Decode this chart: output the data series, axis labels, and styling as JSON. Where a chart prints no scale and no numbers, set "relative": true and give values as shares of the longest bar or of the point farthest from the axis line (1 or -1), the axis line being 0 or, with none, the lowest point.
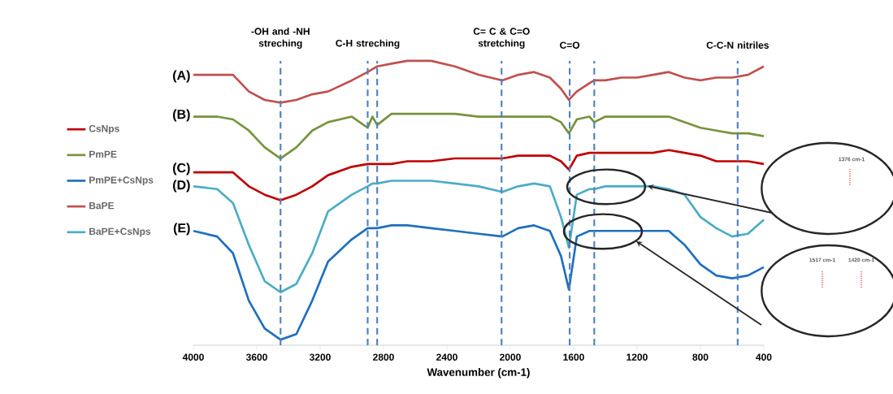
{
  "chart_data": {
    "type": "line",
    "xlabel": "Wavenumber (cm-1)",
    "relative": true,
    "legend": "left",
    "line_style": "solid",
    "xlim": [
      4000,
      400
    ],
    "xticks": [
      4000,
      3600,
      3200,
      2800,
      2400,
      2000,
      1600,
      1200,
      800,
      400
    ],
    "x": [
      4000,
      3850,
      3750,
      3650,
      3550,
      3450,
      3350,
      3250,
      3150,
      3000,
      2900,
      2870,
      2840,
      2750,
      2650,
      2500,
      2350,
      2200,
      2050,
      1950,
      1850,
      1750,
      1680,
      1630,
      1580,
      1500,
      1470,
      1400,
      1300,
      1200,
      1100,
      1000,
      900,
      800,
      700,
      600,
      500,
      400
    ],
    "series": [
      {
        "name": "CsNps",
        "color": "#c00000",
        "values": [
          0.6,
          0.6,
          0.6,
          0.55,
          0.52,
          0.5,
          0.52,
          0.55,
          0.59,
          0.62,
          0.63,
          0.63,
          0.63,
          0.63,
          0.64,
          0.64,
          0.65,
          0.65,
          0.65,
          0.66,
          0.66,
          0.66,
          0.64,
          0.61,
          0.66,
          0.67,
          0.67,
          0.67,
          0.67,
          0.67,
          0.67,
          0.68,
          0.67,
          0.66,
          0.64,
          0.64,
          0.64,
          0.63
        ]
      },
      {
        "name": "PmPE",
        "color": "#77933c",
        "values": [
          0.8,
          0.8,
          0.79,
          0.75,
          0.69,
          0.65,
          0.69,
          0.75,
          0.78,
          0.8,
          0.76,
          0.8,
          0.77,
          0.81,
          0.81,
          0.81,
          0.81,
          0.8,
          0.8,
          0.8,
          0.8,
          0.8,
          0.78,
          0.74,
          0.79,
          0.8,
          0.78,
          0.8,
          0.8,
          0.8,
          0.8,
          0.8,
          0.78,
          0.76,
          0.75,
          0.74,
          0.74,
          0.73
        ]
      },
      {
        "name": "PmPE+CsNps",
        "color": "#1f6fbf",
        "values": [
          0.39,
          0.37,
          0.31,
          0.14,
          0.04,
          0,
          0.02,
          0.14,
          0.28,
          0.36,
          0.4,
          0.4,
          0.4,
          0.41,
          0.41,
          0.4,
          0.39,
          0.38,
          0.37,
          0.4,
          0.41,
          0.39,
          0.3,
          0.18,
          0.37,
          0.39,
          0.39,
          0.39,
          0.39,
          0.39,
          0.39,
          0.39,
          0.34,
          0.27,
          0.23,
          0.22,
          0.23,
          0.26
        ]
      },
      {
        "name": "BaPE",
        "color": "#c0504d",
        "values": [
          0.95,
          0.95,
          0.95,
          0.89,
          0.86,
          0.85,
          0.86,
          0.88,
          0.89,
          0.93,
          0.96,
          0.97,
          0.98,
          0.99,
          1.0,
          1.0,
          0.98,
          0.95,
          0.93,
          0.95,
          0.96,
          0.94,
          0.9,
          0.86,
          0.89,
          0.92,
          0.93,
          0.93,
          0.94,
          0.94,
          0.95,
          0.96,
          0.94,
          0.93,
          0.94,
          0.94,
          0.95,
          0.98
        ]
      },
      {
        "name": "BaPE+CsNps",
        "color": "#4bacc6",
        "values": [
          0.55,
          0.54,
          0.49,
          0.34,
          0.21,
          0.17,
          0.2,
          0.31,
          0.46,
          0.52,
          0.55,
          0.56,
          0.56,
          0.57,
          0.57,
          0.57,
          0.56,
          0.55,
          0.53,
          0.55,
          0.56,
          0.55,
          0.44,
          0.33,
          0.52,
          0.54,
          0.54,
          0.55,
          0.55,
          0.55,
          0.55,
          0.54,
          0.52,
          0.44,
          0.4,
          0.37,
          0.38,
          0.43
        ]
      }
    ],
    "ref_lines": [
      {
        "axis": "x",
        "value": 3450,
        "label": "-OH and -NH streching",
        "color": "#4f81bd",
        "line_style": "dashed"
      },
      {
        "axis": "x",
        "value": 2900,
        "label": "C-H streching",
        "color": "#4f81bd",
        "line_style": "dashed"
      },
      {
        "axis": "x",
        "value": 2840,
        "label": null,
        "color": "#4f81bd",
        "line_style": "dashed"
      },
      {
        "axis": "x",
        "value": 2055,
        "label": "C= C & C=O stretching",
        "color": "#4f81bd",
        "line_style": "dashed"
      },
      {
        "axis": "x",
        "value": 1625,
        "label": "C=O",
        "color": "#4f81bd",
        "line_style": "dashed"
      },
      {
        "axis": "x",
        "value": 1470,
        "label": null,
        "color": "#4f81bd",
        "line_style": "dashed"
      },
      {
        "axis": "x",
        "value": 565,
        "label": "C-C-N nitriles",
        "color": "#4f81bd",
        "line_style": "dashed"
      }
    ],
    "annotations": [
      "(A)",
      "(B)",
      "(C)",
      "(D)",
      "(E)",
      "1376 cm-1",
      "1517 cm-1",
      "1420 cm-1"
    ]
  }
}
